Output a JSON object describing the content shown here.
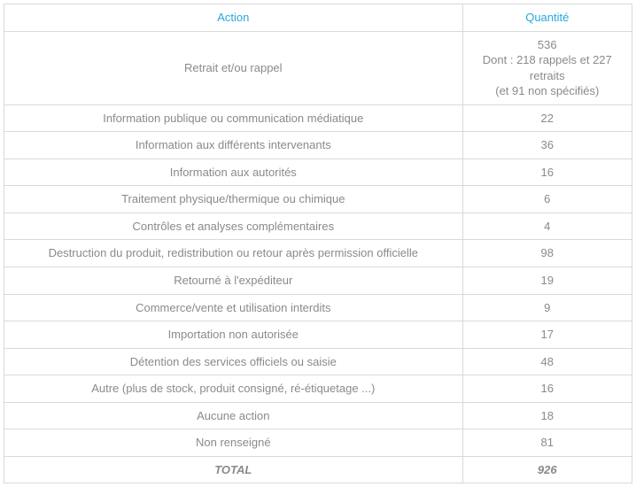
{
  "table": {
    "headers": {
      "action": "Action",
      "quantity": "Quantité"
    },
    "rows": [
      {
        "action": "Retrait et/ou rappel",
        "quantity_main": "536",
        "quantity_sub1": "Dont : 218 rappels et 227 retraits",
        "quantity_sub2": "(et 91 non spécifiés)"
      },
      {
        "action": "Information publique ou communication médiatique",
        "quantity": "22"
      },
      {
        "action": "Information aux différents intervenants",
        "quantity": "36"
      },
      {
        "action": "Information aux autorités",
        "quantity": "16"
      },
      {
        "action": "Traitement physique/thermique ou chimique",
        "quantity": "6"
      },
      {
        "action": "Contrôles et analyses complémentaires",
        "quantity": "4"
      },
      {
        "action": "Destruction du produit, redistribution ou retour après permission officielle",
        "quantity": "98"
      },
      {
        "action": "Retourné à l'expéditeur",
        "quantity": "19"
      },
      {
        "action": "Commerce/vente et utilisation interdits",
        "quantity": "9"
      },
      {
        "action": "Importation non autorisée",
        "quantity": "17"
      },
      {
        "action": "Détention des services officiels ou saisie",
        "quantity": "48"
      },
      {
        "action": "Autre (plus de stock, produit consigné, ré-étiquetage ...)",
        "quantity": "16"
      },
      {
        "action": "Aucune action",
        "quantity": "18"
      },
      {
        "action": "Non renseigné",
        "quantity": "81"
      }
    ],
    "total": {
      "label": "TOTAL",
      "value": "926"
    },
    "colors": {
      "header_text": "#29a7df",
      "body_text": "#8a8a8a",
      "border": "#d9d9d9",
      "background": "#ffffff"
    },
    "font": {
      "family": "Arial",
      "size_pt": 10
    },
    "column_widths": {
      "action_pct": 73,
      "quantity_pct": 27
    }
  }
}
